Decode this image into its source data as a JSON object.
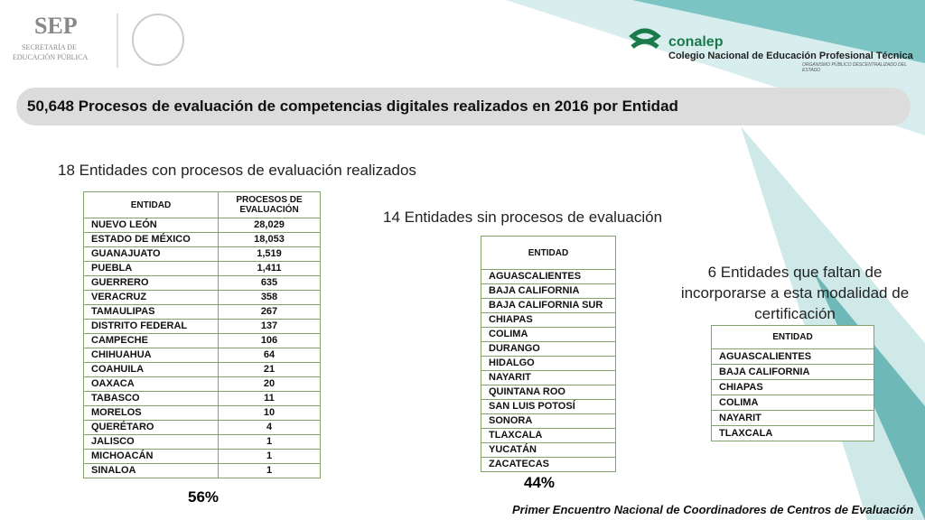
{
  "header": {
    "sep": {
      "name": "SEP",
      "line1": "SECRETARÍA DE",
      "line2": "EDUCACIÓN PÚBLICA"
    },
    "conalep": {
      "name": "conalep",
      "subtitle": "Colegio Nacional de Educación Profesional Técnica",
      "tagline": "ORGANISMO PÚBLICO DESCENTRALIZADO DEL ESTADO"
    }
  },
  "title": "50,648 Procesos de evaluación de competencias digitales realizados en 2016 por Entidad",
  "section1": {
    "heading": "18 Entidades con procesos de evaluación realizados",
    "table": {
      "columns": [
        "ENTIDAD",
        "PROCESOS DE EVALUACIÓN"
      ],
      "rows": [
        [
          "NUEVO LEÓN",
          "28,029"
        ],
        [
          "ESTADO DE MÉXICO",
          "18,053"
        ],
        [
          "GUANAJUATO",
          "1,519"
        ],
        [
          "PUEBLA",
          "1,411"
        ],
        [
          "GUERRERO",
          "635"
        ],
        [
          "VERACRUZ",
          "358"
        ],
        [
          "TAMAULIPAS",
          "267"
        ],
        [
          "DISTRITO FEDERAL",
          "137"
        ],
        [
          "CAMPECHE",
          "106"
        ],
        [
          "CHIHUAHUA",
          "64"
        ],
        [
          "COAHUILA",
          "21"
        ],
        [
          "OAXACA",
          "20"
        ],
        [
          "TABASCO",
          "11"
        ],
        [
          "MORELOS",
          "10"
        ],
        [
          "QUERÉTARO",
          "4"
        ],
        [
          "JALISCO",
          "1"
        ],
        [
          "MICHOACÁN",
          "1"
        ],
        [
          "SINALOA",
          "1"
        ]
      ]
    },
    "percent": "56%"
  },
  "section2": {
    "heading": "14 Entidades sin procesos de evaluación",
    "table": {
      "columns": [
        "ENTIDAD"
      ],
      "rows": [
        [
          "AGUASCALIENTES"
        ],
        [
          "BAJA CALIFORNIA"
        ],
        [
          "BAJA CALIFORNIA SUR"
        ],
        [
          "CHIAPAS"
        ],
        [
          "COLIMA"
        ],
        [
          "DURANGO"
        ],
        [
          "HIDALGO"
        ],
        [
          "NAYARIT"
        ],
        [
          "QUINTANA ROO"
        ],
        [
          "SAN LUIS POTOSÍ"
        ],
        [
          "SONORA"
        ],
        [
          "TLAXCALA"
        ],
        [
          "YUCATÁN"
        ],
        [
          "ZACATECAS"
        ]
      ]
    },
    "percent": "44%"
  },
  "section3": {
    "heading": "6 Entidades que faltan de incorporarse a esta modalidad de certificación",
    "table": {
      "columns": [
        "ENTIDAD"
      ],
      "rows": [
        [
          "AGUASCALIENTES"
        ],
        [
          "BAJA CALIFORNIA"
        ],
        [
          "CHIAPAS"
        ],
        [
          "COLIMA"
        ],
        [
          "NAYARIT"
        ],
        [
          "TLAXCALA"
        ]
      ]
    }
  },
  "footer": "Primer Encuentro Nacional de Coordinadores de Centros de Evaluación"
}
